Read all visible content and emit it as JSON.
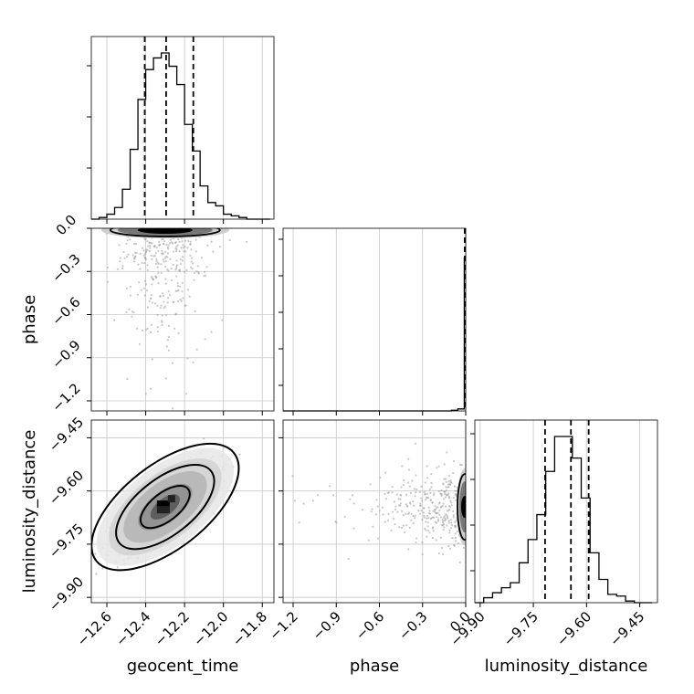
{
  "chart_data": {
    "type": "corner",
    "parameters": [
      "geocent_time",
      "phase",
      "luminosity_distance"
    ],
    "axis_labels": {
      "x": [
        "geocent_time",
        "phase",
        "luminosity_distance"
      ],
      "y": [
        "phase",
        "luminosity_distance"
      ]
    },
    "ranges": {
      "geocent_time": [
        -12.68,
        -11.74
      ],
      "phase": [
        -1.27,
        0.0
      ],
      "luminosity_distance": [
        -9.915,
        -9.4
      ]
    },
    "ticks": {
      "geocent_time": {
        "values": [
          -12.6,
          -12.4,
          -12.2,
          -12.0,
          -11.8
        ],
        "labels": [
          "−12.6",
          "−12.4",
          "−12.2",
          "−12.0",
          "−11.8"
        ]
      },
      "phase": {
        "values": [
          -1.2,
          -0.9,
          -0.6,
          -0.3,
          0.0
        ],
        "labels": [
          "−1.2",
          "−0.9",
          "−0.6",
          "−0.3",
          "0.0"
        ]
      },
      "luminosity_distance": {
        "values": [
          -9.9,
          -9.75,
          -9.6,
          -9.45
        ],
        "labels": [
          "−9.90",
          "−9.75",
          "−9.60",
          "−9.45"
        ]
      }
    },
    "grid": true,
    "histograms": [
      {
        "parameter": "geocent_time",
        "bin_edges": [
          -12.68,
          -12.64,
          -12.6,
          -12.56,
          -12.52,
          -12.48,
          -12.44,
          -12.4,
          -12.36,
          -12.32,
          -12.28,
          -12.24,
          -12.2,
          -12.16,
          -12.12,
          -12.08,
          -12.04,
          -12.0,
          -11.96,
          -11.92,
          -11.88,
          -11.84,
          -11.8,
          -11.76
        ],
        "counts": [
          0.0,
          0.01,
          0.03,
          0.07,
          0.18,
          0.42,
          0.72,
          0.9,
          0.97,
          1.0,
          0.92,
          0.81,
          0.57,
          0.41,
          0.2,
          0.1,
          0.08,
          0.03,
          0.02,
          0.01,
          0.0,
          0.0,
          0.0
        ],
        "quantiles": [
          -12.405,
          -12.295,
          -12.155
        ]
      },
      {
        "parameter": "phase",
        "bin_edges": [
          -1.27,
          -0.1,
          -0.055,
          -0.01,
          0.0
        ],
        "counts": [
          0.0,
          0.004,
          0.012,
          0.92
        ],
        "quantiles": [
          -0.003,
          -0.001,
          0.0
        ]
      },
      {
        "parameter": "luminosity_distance",
        "bin_edges": [
          -9.915,
          -9.89,
          -9.865,
          -9.84,
          -9.815,
          -9.79,
          -9.765,
          -9.74,
          -9.715,
          -9.69,
          -9.665,
          -9.64,
          -9.615,
          -9.59,
          -9.565,
          -9.54,
          -9.515,
          -9.49,
          -9.465,
          -9.44,
          -9.415
        ],
        "counts": [
          0.0,
          0.03,
          0.06,
          0.09,
          0.12,
          0.24,
          0.38,
          0.53,
          0.79,
          1.0,
          1.0,
          0.87,
          0.63,
          0.3,
          0.14,
          0.05,
          0.04,
          0.01,
          0.0,
          0.0
        ],
        "quantiles": [
          -9.717,
          -9.644,
          -9.594
        ]
      }
    ],
    "samples_2d": [
      {
        "x": "geocent_time",
        "y": "phase",
        "centers": [
          [
            -12.3,
            -0.002
          ]
        ],
        "spread": [
          0.12,
          0.2
        ],
        "correlation": 0.0,
        "note": "mass concentrated at phase ≈ 0 with sparse scatter down to about −1.1"
      },
      {
        "x": "geocent_time",
        "y": "luminosity_distance",
        "centers": [
          [
            -12.3,
            -9.645
          ]
        ],
        "spread": [
          0.12,
          0.055
        ],
        "correlation": 0.75,
        "contours": [
          0.39,
          0.86,
          0.99
        ]
      },
      {
        "x": "phase",
        "y": "luminosity_distance",
        "centers": [
          [
            -0.003,
            -9.645
          ]
        ],
        "spread": [
          0.2,
          0.055
        ],
        "correlation": 0.0,
        "note": "density collapsed against phase = 0 edge with scatter toward −1.1"
      }
    ]
  }
}
